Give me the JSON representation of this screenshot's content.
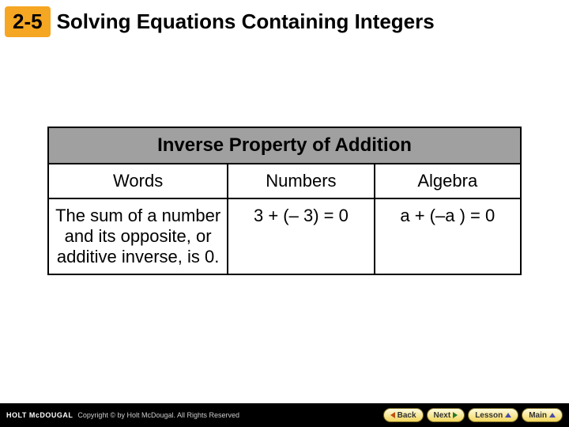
{
  "header": {
    "section_number": "2-5",
    "title": "Solving Equations Containing Integers"
  },
  "table": {
    "title": "Inverse Property of Addition",
    "columns": {
      "words": "Words",
      "numbers": "Numbers",
      "algebra": "Algebra"
    },
    "row": {
      "words": "The sum of a number and its opposite, or additive inverse, is 0.",
      "numbers": "3 + (– 3) = 0",
      "algebra": "a + (–a ) = 0"
    }
  },
  "footer": {
    "publisher": "HOLT McDOUGAL",
    "copyright": "Copyright © by Holt McDougal. All Rights Reserved",
    "buttons": {
      "back": "Back",
      "next": "Next",
      "lesson": "Lesson",
      "main": "Main"
    }
  },
  "colors": {
    "badge_bg": "#f5a623",
    "table_title_bg": "#a0a0a0",
    "footer_bg": "#000000",
    "btn_grad_top": "#fefbe0",
    "btn_grad_bottom": "#f2d65c"
  }
}
